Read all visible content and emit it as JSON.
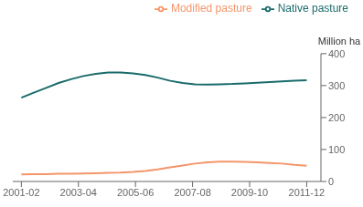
{
  "chart_data": {
    "type": "line",
    "x": [
      2001.5,
      2001.9347826086957,
      2002.3695652173913,
      2002.804347826087,
      2003.2391304347825,
      2003.6739130434783,
      2004.108695652174,
      2004.5434782608695,
      2004.9782608695652,
      2005.4130434782608,
      2005.8478260869565,
      2006.2826086956522,
      2006.7173913043478,
      2007.1521739130435,
      2007.5869565217392,
      2008.0217391304348,
      2008.4565217391305,
      2008.891304347826,
      2009.3260869565217,
      2009.7608695652175,
      2010.195652173913,
      2010.6304347826087,
      2011.0652173913043,
      2011.5
    ],
    "series": [
      {
        "name": "Native pasture",
        "color": "#1a6b6b",
        "values": [
          262,
          278,
          293,
          308,
          320,
          330,
          337,
          341,
          341,
          338,
          333,
          325,
          315,
          308,
          304,
          303,
          304,
          305,
          307,
          309,
          311,
          313,
          315,
          317
        ]
      },
      {
        "name": "Modified pasture",
        "color": "#f4956a",
        "values": [
          22,
          23,
          23,
          24,
          24,
          25,
          26,
          27,
          28,
          30,
          33,
          38,
          44,
          50,
          56,
          60,
          62,
          62,
          61,
          60,
          58,
          56,
          52,
          49
        ]
      }
    ],
    "xlim": [
      2001.2,
      2012.0
    ],
    "xticks": [
      {
        "value": 2001.5,
        "label": "2001-02"
      },
      {
        "value": 2003.5,
        "label": "2003-04"
      },
      {
        "value": 2005.5,
        "label": "2005-06"
      },
      {
        "value": 2007.5,
        "label": "2007-08"
      },
      {
        "value": 2009.5,
        "label": "2009-10"
      },
      {
        "value": 2011.5,
        "label": "2011-12"
      }
    ],
    "ylim": [
      0,
      400
    ],
    "yticks": [
      0,
      100,
      200,
      300,
      400
    ],
    "y_label": "Million ha",
    "legend": "upper right",
    "grid": false
  }
}
